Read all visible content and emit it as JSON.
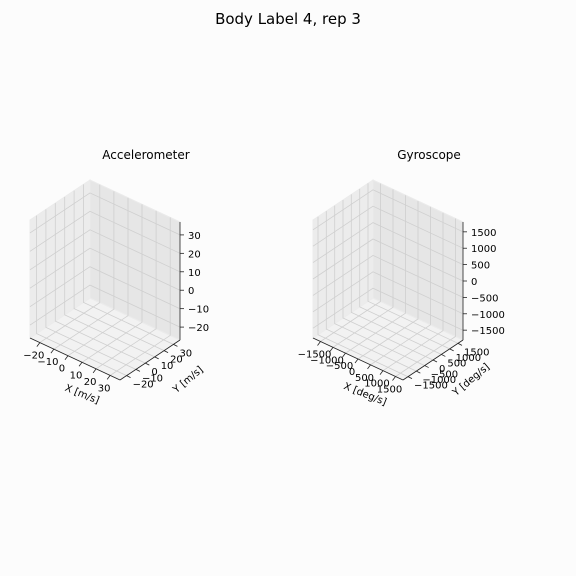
{
  "figure": {
    "title": "Body Label 4, rep 3"
  },
  "chart_data": [
    {
      "type": "scatter",
      "title": "Accelerometer",
      "xlabel": "X [m/s]",
      "ylabel": "Y [m/s]",
      "zlabel": "",
      "xticks": [
        -20,
        -10,
        0,
        10,
        20,
        30
      ],
      "yticks": [
        -20,
        -10,
        0,
        10,
        20,
        30
      ],
      "zticks": [
        -20,
        -10,
        0,
        10,
        20,
        30
      ],
      "xtick_labels": [
        "−20",
        "−10",
        "0",
        "10",
        "20",
        "30"
      ],
      "ytick_labels": [
        "−20",
        "−10",
        "0",
        "10",
        "20",
        "30"
      ],
      "ztick_labels": [
        "−20",
        "−10",
        "0",
        "10",
        "20",
        "30"
      ],
      "xlim": [
        -27,
        37
      ],
      "ylim": [
        -27,
        37
      ],
      "zlim": [
        -27,
        37
      ],
      "grid": true,
      "series": []
    },
    {
      "type": "scatter",
      "title": "Gyroscope",
      "xlabel": "X [deg/s]",
      "ylabel": "Y [deg/s]",
      "zlabel": "",
      "xticks": [
        -1500,
        -1000,
        -500,
        0,
        500,
        1000,
        1500
      ],
      "yticks": [
        -1500,
        -1000,
        -500,
        0,
        500,
        1000,
        1500
      ],
      "zticks": [
        -1500,
        -1000,
        -500,
        0,
        500,
        1000,
        1500
      ],
      "xtick_labels": [
        "−1500",
        "−1000",
        "−500",
        "0",
        "500",
        "1000",
        "1500"
      ],
      "ytick_labels": [
        "−1500",
        "−1000",
        "−500",
        "0",
        "500",
        "1000",
        "1500"
      ],
      "ztick_labels": [
        "−1500",
        "−1000",
        "−500",
        "0",
        "500",
        "1000",
        "1500"
      ],
      "xlim": [
        -1800,
        1800
      ],
      "ylim": [
        -1800,
        1800
      ],
      "zlim": [
        -1800,
        1800
      ],
      "grid": true,
      "series": []
    }
  ]
}
